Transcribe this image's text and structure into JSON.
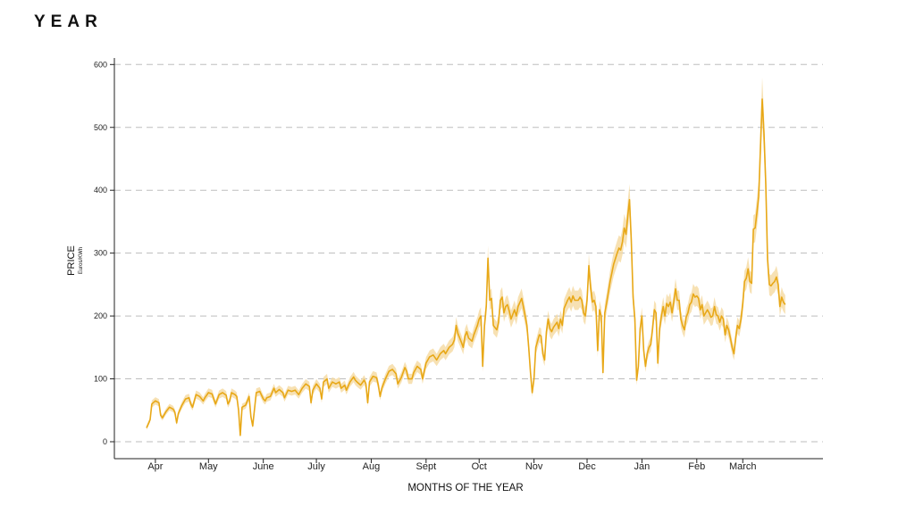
{
  "page": {
    "title": "YEAR"
  },
  "chart_data": {
    "type": "line",
    "title": "YEAR",
    "xlabel": "MONTHS OF THE YEAR",
    "ylabel": "PRICE",
    "ylabel_unit": "Euros/KWh",
    "ylim": [
      0,
      600
    ],
    "yticks": [
      0,
      100,
      200,
      300,
      400,
      500,
      600
    ],
    "grid": "horizontal dashed",
    "x_start": "Mar 27",
    "x_end": "Mar 21",
    "month_ticks": [
      {
        "label": "Apr",
        "day": 5
      },
      {
        "label": "May",
        "day": 35
      },
      {
        "label": "June",
        "day": 66
      },
      {
        "label": "July",
        "day": 96
      },
      {
        "label": "Aug",
        "day": 127
      },
      {
        "label": "Sept",
        "day": 158
      },
      {
        "label": "Oct",
        "day": 188
      },
      {
        "label": "Nov",
        "day": 219
      },
      {
        "label": "Dec",
        "day": 249
      },
      {
        "label": "Jan",
        "day": 280
      },
      {
        "label": "Feb",
        "day": 311
      },
      {
        "label": "March",
        "day": 337
      }
    ],
    "series": [
      {
        "color": "#e8a817",
        "band_color": "#f5d9a0",
        "points": [
          [
            0,
            22
          ],
          [
            2,
            35
          ],
          [
            3,
            60
          ],
          [
            5,
            65
          ],
          [
            7,
            62
          ],
          [
            8,
            42
          ],
          [
            9,
            38
          ],
          [
            11,
            48
          ],
          [
            13,
            55
          ],
          [
            15,
            52
          ],
          [
            16,
            47
          ],
          [
            17,
            30
          ],
          [
            18,
            45
          ],
          [
            20,
            58
          ],
          [
            22,
            68
          ],
          [
            24,
            70
          ],
          [
            25,
            60
          ],
          [
            26,
            55
          ],
          [
            28,
            75
          ],
          [
            30,
            72
          ],
          [
            32,
            65
          ],
          [
            33,
            70
          ],
          [
            35,
            78
          ],
          [
            37,
            76
          ],
          [
            39,
            60
          ],
          [
            41,
            75
          ],
          [
            43,
            78
          ],
          [
            45,
            74
          ],
          [
            46,
            60
          ],
          [
            47,
            65
          ],
          [
            48,
            78
          ],
          [
            50,
            75
          ],
          [
            51,
            72
          ],
          [
            52,
            50
          ],
          [
            53,
            10
          ],
          [
            54,
            55
          ],
          [
            56,
            58
          ],
          [
            58,
            72
          ],
          [
            59,
            40
          ],
          [
            60,
            25
          ],
          [
            62,
            78
          ],
          [
            64,
            80
          ],
          [
            66,
            68
          ],
          [
            67,
            65
          ],
          [
            68,
            70
          ],
          [
            70,
            72
          ],
          [
            72,
            85
          ],
          [
            73,
            78
          ],
          [
            75,
            83
          ],
          [
            77,
            78
          ],
          [
            78,
            70
          ],
          [
            80,
            82
          ],
          [
            82,
            80
          ],
          [
            84,
            82
          ],
          [
            86,
            75
          ],
          [
            88,
            85
          ],
          [
            90,
            92
          ],
          [
            92,
            88
          ],
          [
            93,
            62
          ],
          [
            94,
            82
          ],
          [
            96,
            92
          ],
          [
            98,
            85
          ],
          [
            99,
            68
          ],
          [
            100,
            95
          ],
          [
            102,
            100
          ],
          [
            103,
            85
          ],
          [
            105,
            95
          ],
          [
            107,
            92
          ],
          [
            109,
            95
          ],
          [
            110,
            85
          ],
          [
            112,
            90
          ],
          [
            113,
            82
          ],
          [
            115,
            95
          ],
          [
            117,
            103
          ],
          [
            118,
            98
          ],
          [
            119,
            95
          ],
          [
            121,
            90
          ],
          [
            123,
            98
          ],
          [
            124,
            92
          ],
          [
            125,
            62
          ],
          [
            126,
            95
          ],
          [
            128,
            104
          ],
          [
            130,
            102
          ],
          [
            131,
            90
          ],
          [
            132,
            72
          ],
          [
            133,
            85
          ],
          [
            135,
            100
          ],
          [
            137,
            112
          ],
          [
            139,
            115
          ],
          [
            141,
            108
          ],
          [
            142,
            92
          ],
          [
            144,
            102
          ],
          [
            146,
            118
          ],
          [
            147,
            112
          ],
          [
            148,
            100
          ],
          [
            150,
            100
          ],
          [
            151,
            110
          ],
          [
            153,
            120
          ],
          [
            155,
            115
          ],
          [
            156,
            100
          ],
          [
            158,
            125
          ],
          [
            160,
            135
          ],
          [
            162,
            138
          ],
          [
            164,
            130
          ],
          [
            166,
            140
          ],
          [
            168,
            145
          ],
          [
            169,
            140
          ],
          [
            171,
            150
          ],
          [
            173,
            155
          ],
          [
            174,
            162
          ],
          [
            175,
            185
          ],
          [
            176,
            172
          ],
          [
            178,
            158
          ],
          [
            179,
            150
          ],
          [
            180,
            168
          ],
          [
            181,
            175
          ],
          [
            182,
            165
          ],
          [
            184,
            160
          ],
          [
            185,
            170
          ],
          [
            187,
            185
          ],
          [
            188,
            195
          ],
          [
            189,
            200
          ],
          [
            190,
            120
          ],
          [
            191,
            185
          ],
          [
            192,
            215
          ],
          [
            193,
            292
          ],
          [
            194,
            225
          ],
          [
            195,
            228
          ],
          [
            196,
            185
          ],
          [
            198,
            178
          ],
          [
            199,
            190
          ],
          [
            200,
            225
          ],
          [
            201,
            230
          ],
          [
            202,
            205
          ],
          [
            203,
            215
          ],
          [
            204,
            218
          ],
          [
            205,
            208
          ],
          [
            206,
            195
          ],
          [
            208,
            210
          ],
          [
            209,
            200
          ],
          [
            210,
            215
          ],
          [
            212,
            228
          ],
          [
            213,
            215
          ],
          [
            215,
            185
          ],
          [
            216,
            150
          ],
          [
            217,
            110
          ],
          [
            218,
            78
          ],
          [
            219,
            100
          ],
          [
            220,
            150
          ],
          [
            222,
            170
          ],
          [
            223,
            168
          ],
          [
            224,
            140
          ],
          [
            225,
            130
          ],
          [
            226,
            175
          ],
          [
            227,
            195
          ],
          [
            228,
            180
          ],
          [
            229,
            175
          ],
          [
            230,
            182
          ],
          [
            232,
            190
          ],
          [
            233,
            180
          ],
          [
            234,
            195
          ],
          [
            235,
            185
          ],
          [
            236,
            212
          ],
          [
            238,
            225
          ],
          [
            239,
            230
          ],
          [
            240,
            222
          ],
          [
            241,
            232
          ],
          [
            242,
            225
          ],
          [
            244,
            225
          ],
          [
            245,
            230
          ],
          [
            246,
            225
          ],
          [
            247,
            205
          ],
          [
            248,
            200
          ],
          [
            249,
            225
          ],
          [
            250,
            280
          ],
          [
            251,
            245
          ],
          [
            252,
            222
          ],
          [
            253,
            225
          ],
          [
            254,
            215
          ],
          [
            255,
            145
          ],
          [
            256,
            210
          ],
          [
            257,
            200
          ],
          [
            258,
            110
          ],
          [
            259,
            205
          ],
          [
            260,
            220
          ],
          [
            262,
            255
          ],
          [
            264,
            282
          ],
          [
            266,
            300
          ],
          [
            267,
            308
          ],
          [
            268,
            305
          ],
          [
            269,
            318
          ],
          [
            270,
            340
          ],
          [
            271,
            330
          ],
          [
            272,
            360
          ],
          [
            273,
            385
          ],
          [
            274,
            320
          ],
          [
            275,
            230
          ],
          [
            276,
            195
          ],
          [
            277,
            98
          ],
          [
            278,
            120
          ],
          [
            279,
            180
          ],
          [
            280,
            200
          ],
          [
            281,
            145
          ],
          [
            282,
            120
          ],
          [
            283,
            140
          ],
          [
            284,
            150
          ],
          [
            285,
            155
          ],
          [
            286,
            180
          ],
          [
            287,
            210
          ],
          [
            288,
            205
          ],
          [
            289,
            125
          ],
          [
            290,
            180
          ],
          [
            291,
            200
          ],
          [
            292,
            215
          ],
          [
            293,
            200
          ],
          [
            294,
            220
          ],
          [
            295,
            215
          ],
          [
            296,
            222
          ],
          [
            297,
            205
          ],
          [
            298,
            222
          ],
          [
            299,
            243
          ],
          [
            300,
            225
          ],
          [
            301,
            225
          ],
          [
            302,
            195
          ],
          [
            303,
            185
          ],
          [
            304,
            178
          ],
          [
            305,
            198
          ],
          [
            306,
            205
          ],
          [
            307,
            218
          ],
          [
            308,
            222
          ],
          [
            309,
            235
          ],
          [
            310,
            230
          ],
          [
            311,
            232
          ],
          [
            312,
            228
          ],
          [
            313,
            210
          ],
          [
            314,
            218
          ],
          [
            315,
            200
          ],
          [
            316,
            205
          ],
          [
            317,
            210
          ],
          [
            318,
            205
          ],
          [
            319,
            198
          ],
          [
            320,
            200
          ],
          [
            321,
            215
          ],
          [
            322,
            202
          ],
          [
            323,
            200
          ],
          [
            324,
            190
          ],
          [
            325,
            200
          ],
          [
            326,
            195
          ],
          [
            327,
            170
          ],
          [
            328,
            185
          ],
          [
            329,
            178
          ],
          [
            330,
            165
          ],
          [
            331,
            150
          ],
          [
            332,
            140
          ],
          [
            333,
            165
          ],
          [
            334,
            185
          ],
          [
            335,
            180
          ],
          [
            336,
            195
          ],
          [
            337,
            220
          ],
          [
            338,
            255
          ],
          [
            339,
            260
          ],
          [
            340,
            275
          ],
          [
            341,
            255
          ],
          [
            342,
            252
          ],
          [
            343,
            338
          ],
          [
            344,
            340
          ],
          [
            345,
            365
          ],
          [
            346,
            390
          ],
          [
            347,
            470
          ],
          [
            348,
            545
          ],
          [
            349,
            490
          ],
          [
            350,
            410
          ],
          [
            351,
            290
          ],
          [
            352,
            250
          ],
          [
            353,
            248
          ],
          [
            354,
            252
          ],
          [
            355,
            255
          ],
          [
            356,
            262
          ],
          [
            357,
            250
          ],
          [
            358,
            215
          ],
          [
            359,
            230
          ],
          [
            360,
            222
          ],
          [
            361,
            218
          ]
        ]
      }
    ]
  }
}
